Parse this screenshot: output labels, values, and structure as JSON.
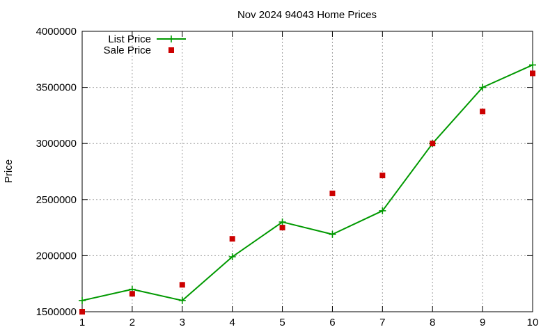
{
  "chart_data": {
    "type": "line",
    "title": "Nov 2024 94043 Home Prices",
    "xlabel": "",
    "ylabel": "Price",
    "x": [
      1,
      2,
      3,
      4,
      5,
      6,
      7,
      8,
      9,
      10
    ],
    "xlim": [
      1,
      10
    ],
    "ylim": [
      1500000,
      4000000
    ],
    "xticks": [
      "1",
      "2",
      "3",
      "4",
      "5",
      "6",
      "7",
      "8",
      "9",
      "10"
    ],
    "yticks": [
      "1500000",
      "2000000",
      "2500000",
      "3000000",
      "3500000",
      "4000000"
    ],
    "grid": true,
    "legend_position": "top-left",
    "series": [
      {
        "name": "List Price",
        "kind": "line",
        "marker": "plus",
        "color": "#009900",
        "values": [
          1600000,
          1700000,
          1600000,
          1990000,
          2300000,
          2190000,
          2400000,
          3000000,
          3500000,
          3700000
        ]
      },
      {
        "name": "Sale Price",
        "kind": "points",
        "marker": "square",
        "color": "#cc0000",
        "values": [
          1500000,
          1660000,
          1740000,
          2150000,
          2250000,
          2555000,
          2715000,
          3000000,
          3285000,
          3625000
        ]
      }
    ]
  }
}
